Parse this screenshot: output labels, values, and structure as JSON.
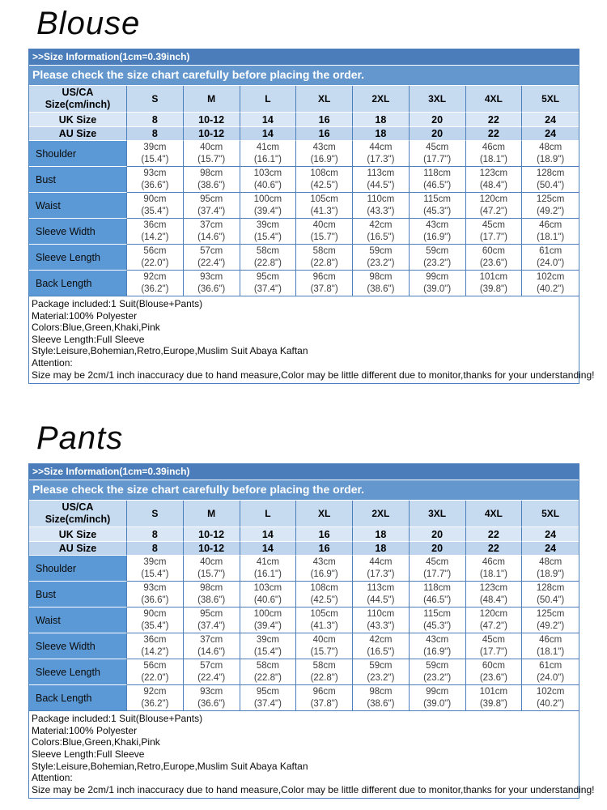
{
  "colors": {
    "info_bar_bg": "#4a7db9",
    "notice_bar_bg": "#6397ce",
    "column_header_bg": "#c6dbf0",
    "uk_row_bg": "#d8e6f6",
    "au_row_bg": "#bfd5ed",
    "measurement_label_bg": "#5b99d6",
    "table_border": "#4c7fbc",
    "bar_text": "#ffffff"
  },
  "sections": [
    {
      "id": "blouse",
      "title": "Blouse",
      "table": {
        "info_bar": ">>Size Information(1cm=0.39inch)",
        "notice_bar": "Please check the size chart carefully before placing the order.",
        "corner_header_line1": "US/CA",
        "corner_header_line2": "Size(cm/inch)",
        "size_columns": [
          "S",
          "M",
          "L",
          "XL",
          "2XL",
          "3XL",
          "4XL",
          "5XL"
        ],
        "size_rows": [
          {
            "label": "UK Size",
            "values": [
              "8",
              "10-12",
              "14",
              "16",
              "18",
              "20",
              "22",
              "24"
            ]
          },
          {
            "label": "AU Size",
            "values": [
              "8",
              "10-12",
              "14",
              "16",
              "18",
              "20",
              "22",
              "24"
            ]
          }
        ],
        "measurement_rows": [
          {
            "label": "Shoulder",
            "cm": [
              "39cm",
              "40cm",
              "41cm",
              "43cm",
              "44cm",
              "45cm",
              "46cm",
              "48cm"
            ],
            "inch": [
              "(15.4\")",
              "(15.7\")",
              "(16.1\")",
              "(16.9\")",
              "(17.3\")",
              "(17.7\")",
              "(18.1\")",
              "(18.9\")"
            ]
          },
          {
            "label": "Bust",
            "cm": [
              "93cm",
              "98cm",
              "103cm",
              "108cm",
              "113cm",
              "118cm",
              "123cm",
              "128cm"
            ],
            "inch": [
              "(36.6\")",
              "(38.6\")",
              "(40.6\")",
              "(42.5\")",
              "(44.5\")",
              "(46.5\")",
              "(48.4\")",
              "(50.4\")"
            ]
          },
          {
            "label": "Waist",
            "cm": [
              "90cm",
              "95cm",
              "100cm",
              "105cm",
              "110cm",
              "115cm",
              "120cm",
              "125cm"
            ],
            "inch": [
              "(35.4\")",
              "(37.4\")",
              "(39.4\")",
              "(41.3\")",
              "(43.3\")",
              "(45.3\")",
              "(47.2\")",
              "(49.2\")"
            ]
          },
          {
            "label": "Sleeve Width",
            "cm": [
              "36cm",
              "37cm",
              "39cm",
              "40cm",
              "42cm",
              "43cm",
              "45cm",
              "46cm"
            ],
            "inch": [
              "(14.2\")",
              "(14.6\")",
              "(15.4\")",
              "(15.7\")",
              "(16.5\")",
              "(16.9\")",
              "(17.7\")",
              "(18.1\")"
            ]
          },
          {
            "label": "Sleeve Length",
            "cm": [
              "56cm",
              "57cm",
              "58cm",
              "58cm",
              "59cm",
              "59cm",
              "60cm",
              "61cm"
            ],
            "inch": [
              "(22.0\")",
              "(22.4\")",
              "(22.8\")",
              "(22.8\")",
              "(23.2\")",
              "(23.2\")",
              "(23.6\")",
              "(24.0\")"
            ]
          },
          {
            "label": "Back Length",
            "cm": [
              "92cm",
              "93cm",
              "95cm",
              "96cm",
              "98cm",
              "99cm",
              "101cm",
              "102cm"
            ],
            "inch": [
              "(36.2\")",
              "(36.6\")",
              "(37.4\")",
              "(37.8\")",
              "(38.6\")",
              "(39.0\")",
              "(39.8\")",
              "(40.2\")"
            ]
          }
        ],
        "notes": [
          "Package included:1 Suit(Blouse+Pants)",
          "Material:100% Polyester",
          "Colors:Blue,Green,Khaki,Pink",
          "Sleeve Length:Full Sleeve",
          "Style:Leisure,Bohemian,Retro,Europe,Muslim Suit Abaya Kaftan",
          "Attention:",
          "Size may be 2cm/1 inch inaccuracy due to hand measure,Color may be little different due to monitor,thanks for your understanding!"
        ]
      }
    },
    {
      "id": "pants",
      "title": "Pants",
      "table": {
        "info_bar": ">>Size Information(1cm=0.39inch)",
        "notice_bar": "Please check the size chart carefully before placing the order.",
        "corner_header_line1": "US/CA",
        "corner_header_line2": "Size(cm/inch)",
        "size_columns": [
          "S",
          "M",
          "L",
          "XL",
          "2XL",
          "3XL",
          "4XL",
          "5XL"
        ],
        "size_rows": [
          {
            "label": "UK Size",
            "values": [
              "8",
              "10-12",
              "14",
              "16",
              "18",
              "20",
              "22",
              "24"
            ]
          },
          {
            "label": "AU Size",
            "values": [
              "8",
              "10-12",
              "14",
              "16",
              "18",
              "20",
              "22",
              "24"
            ]
          }
        ],
        "measurement_rows": [
          {
            "label": "Shoulder",
            "cm": [
              "39cm",
              "40cm",
              "41cm",
              "43cm",
              "44cm",
              "45cm",
              "46cm",
              "48cm"
            ],
            "inch": [
              "(15.4\")",
              "(15.7\")",
              "(16.1\")",
              "(16.9\")",
              "(17.3\")",
              "(17.7\")",
              "(18.1\")",
              "(18.9\")"
            ]
          },
          {
            "label": "Bust",
            "cm": [
              "93cm",
              "98cm",
              "103cm",
              "108cm",
              "113cm",
              "118cm",
              "123cm",
              "128cm"
            ],
            "inch": [
              "(36.6\")",
              "(38.6\")",
              "(40.6\")",
              "(42.5\")",
              "(44.5\")",
              "(46.5\")",
              "(48.4\")",
              "(50.4\")"
            ]
          },
          {
            "label": "Waist",
            "cm": [
              "90cm",
              "95cm",
              "100cm",
              "105cm",
              "110cm",
              "115cm",
              "120cm",
              "125cm"
            ],
            "inch": [
              "(35.4\")",
              "(37.4\")",
              "(39.4\")",
              "(41.3\")",
              "(43.3\")",
              "(45.3\")",
              "(47.2\")",
              "(49.2\")"
            ]
          },
          {
            "label": "Sleeve Width",
            "cm": [
              "36cm",
              "37cm",
              "39cm",
              "40cm",
              "42cm",
              "43cm",
              "45cm",
              "46cm"
            ],
            "inch": [
              "(14.2\")",
              "(14.6\")",
              "(15.4\")",
              "(15.7\")",
              "(16.5\")",
              "(16.9\")",
              "(17.7\")",
              "(18.1\")"
            ]
          },
          {
            "label": "Sleeve Length",
            "cm": [
              "56cm",
              "57cm",
              "58cm",
              "58cm",
              "59cm",
              "59cm",
              "60cm",
              "61cm"
            ],
            "inch": [
              "(22.0\")",
              "(22.4\")",
              "(22.8\")",
              "(22.8\")",
              "(23.2\")",
              "(23.2\")",
              "(23.6\")",
              "(24.0\")"
            ]
          },
          {
            "label": "Back Length",
            "cm": [
              "92cm",
              "93cm",
              "95cm",
              "96cm",
              "98cm",
              "99cm",
              "101cm",
              "102cm"
            ],
            "inch": [
              "(36.2\")",
              "(36.6\")",
              "(37.4\")",
              "(37.8\")",
              "(38.6\")",
              "(39.0\")",
              "(39.8\")",
              "(40.2\")"
            ]
          }
        ],
        "notes": [
          "Package included:1 Suit(Blouse+Pants)",
          "Material:100% Polyester",
          "Colors:Blue,Green,Khaki,Pink",
          "Sleeve Length:Full Sleeve",
          "Style:Leisure,Bohemian,Retro,Europe,Muslim Suit Abaya Kaftan",
          "Attention:",
          "Size may be 2cm/1 inch inaccuracy due to hand measure,Color may be little different due to monitor,thanks for your understanding!"
        ]
      }
    }
  ]
}
